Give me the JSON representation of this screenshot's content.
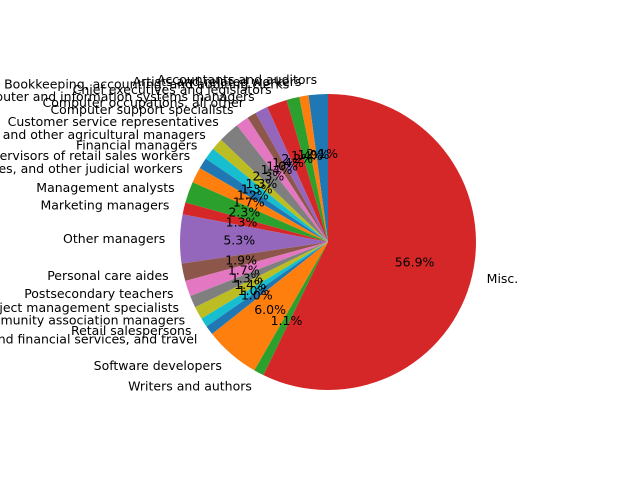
{
  "chart_data": {
    "type": "pie",
    "slices": [
      {
        "label": "Accountants and auditors",
        "value": 2.1,
        "pct_label": "2.1%",
        "color": "#1f77b4"
      },
      {
        "label": "Artists and related workers",
        "value": 1.0,
        "pct_label": "1.0%",
        "color": "#ff7f0e"
      },
      {
        "label": "Bookkeeping, accounting, and auditing clerks",
        "value": 1.4,
        "pct_label": "1.4%",
        "color": "#2ca02c"
      },
      {
        "label": "Chief executives and legislators",
        "value": 2.2,
        "pct_label": "2.2%",
        "color": "#d62728"
      },
      {
        "label": "Computer and information systems managers",
        "value": 1.4,
        "pct_label": "1.4%",
        "color": "#9467bd"
      },
      {
        "label": "Computer occupations, all other",
        "value": 1.0,
        "pct_label": "1.0%",
        "color": "#8c564b"
      },
      {
        "label": "Computer support specialists",
        "value": 1.4,
        "pct_label": "1.4%",
        "color": "#e377c2"
      },
      {
        "label": "Customer service representatives",
        "value": 2.3,
        "pct_label": "2.3%",
        "color": "#7f7f7f"
      },
      {
        "label": "Farmers, ranchers, and other agricultural managers",
        "value": 1.3,
        "pct_label": "1.3%",
        "color": "#bcbd22"
      },
      {
        "label": "Financial managers",
        "value": 1.3,
        "pct_label": "1.3%",
        "color": "#17becf"
      },
      {
        "label": "First-line supervisors of retail sales workers",
        "value": 1.2,
        "pct_label": "1.2%",
        "color": "#1f77b4"
      },
      {
        "label": "Judges, magistrates, and other judicial workers",
        "value": 1.7,
        "pct_label": "1.7%",
        "color": "#ff7f0e"
      },
      {
        "label": "Management analysts",
        "value": 2.3,
        "pct_label": "2.3%",
        "color": "#2ca02c"
      },
      {
        "label": "Marketing managers",
        "value": 1.3,
        "pct_label": "1.3%",
        "color": "#d62728"
      },
      {
        "label": "Other managers",
        "value": 5.3,
        "pct_label": "5.3%",
        "color": "#9467bd"
      },
      {
        "label": "Personal care aides",
        "value": 1.9,
        "pct_label": "1.9%",
        "color": "#8c564b"
      },
      {
        "label": "Postsecondary teachers",
        "value": 1.7,
        "pct_label": "1.7%",
        "color": "#e377c2"
      },
      {
        "label": "Project management specialists",
        "value": 1.3,
        "pct_label": "1.3%",
        "color": "#7f7f7f"
      },
      {
        "label": "Property, real estate, and community association managers",
        "value": 1.4,
        "pct_label": "1.4%",
        "color": "#bcbd22"
      },
      {
        "label": "Retail salespersons",
        "value": 1.0,
        "pct_label": "1.0%",
        "color": "#17becf"
      },
      {
        "label": "Sales agents, securities, commodities, and financial services, and travel",
        "value": 1.0,
        "pct_label": "1.0%",
        "color": "#1f77b4"
      },
      {
        "label": "Software developers",
        "value": 6.0,
        "pct_label": "6.0%",
        "color": "#ff7f0e"
      },
      {
        "label": "Writers and authors",
        "value": 1.1,
        "pct_label": "1.1%",
        "color": "#2ca02c"
      },
      {
        "label": "Misc.",
        "value": 56.9,
        "pct_label": "56.9%",
        "color": "#d62728"
      }
    ],
    "start_angle": 90,
    "direction": "counterclockwise",
    "legend": "none"
  }
}
